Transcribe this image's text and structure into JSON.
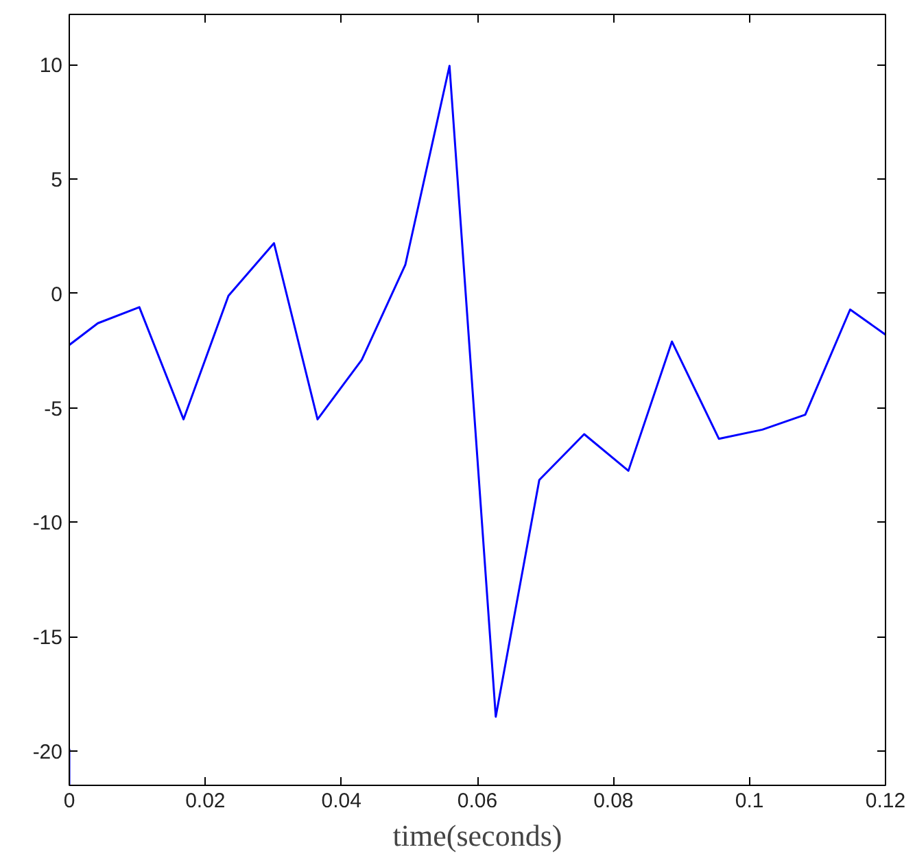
{
  "chart_data": {
    "type": "line",
    "xlabel": "time(seconds)",
    "xlim": [
      0,
      0.12
    ],
    "xticks": [
      0,
      0.02,
      0.04,
      0.06,
      0.08,
      0.1,
      0.12
    ],
    "ylim": [
      -21.5,
      12.2
    ],
    "yticks": [
      -20,
      -15,
      -10,
      -5,
      0,
      5,
      10
    ],
    "grid": false,
    "series": [
      {
        "color": "#0000ff",
        "x": [
          0,
          0.0042,
          0.0103,
          0.0168,
          0.0234,
          0.0301,
          0.0365,
          0.043,
          0.0494,
          0.0531,
          0.0559,
          0.0627,
          0.0691,
          0.0757,
          0.0822,
          0.0886,
          0.0955,
          0.1019,
          0.1082,
          0.1148,
          0.12
        ],
        "values": [
          -2.25,
          -1.3,
          -0.6,
          -5.5,
          -0.1,
          2.2,
          -5.5,
          -2.9,
          1.25,
          6.2,
          9.95,
          -18.5,
          -8.15,
          -6.15,
          -7.75,
          -2.1,
          -6.35,
          -5.95,
          -5.3,
          -0.7,
          -1.8
        ]
      },
      {
        "color": "#0000ff",
        "x": [
          0,
          0
        ],
        "values": [
          -21.5,
          -19.9
        ]
      }
    ]
  }
}
